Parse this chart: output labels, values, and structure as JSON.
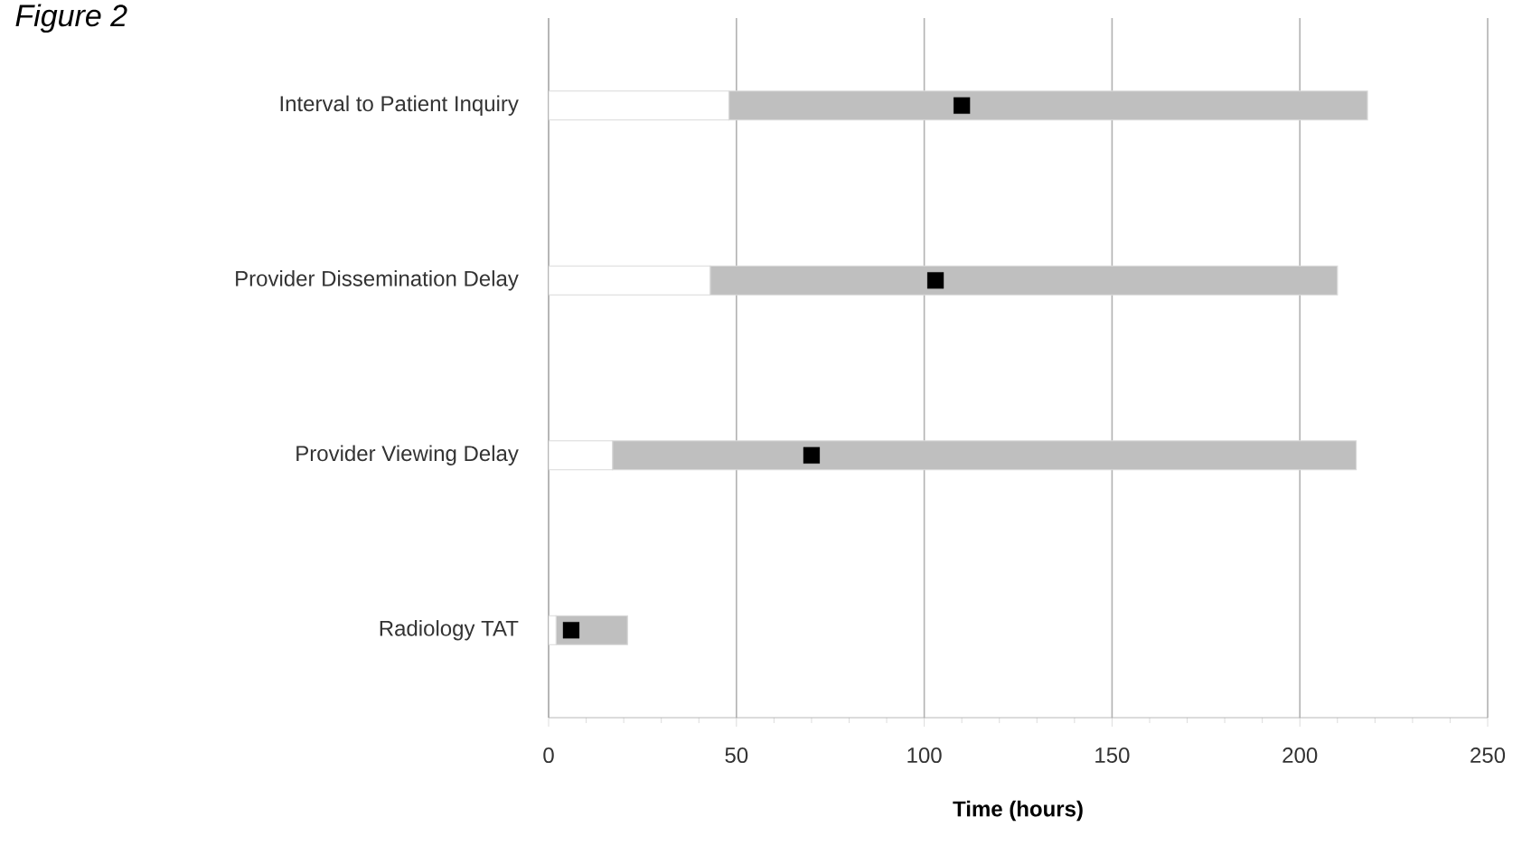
{
  "chart_data": {
    "type": "bar",
    "orientation": "horizontal",
    "stacked": true,
    "title": "Figure 2",
    "xlabel": "Time (hours)",
    "categories": [
      "Interval to Patient Inquiry",
      "Provider Dissemination Delay",
      "Provider Viewing Delay",
      "Radiology TAT"
    ],
    "series": [
      {
        "color": "#ffffff",
        "values": [
          48,
          43,
          17,
          2
        ]
      },
      {
        "color": "#bfbfbf",
        "values": [
          170,
          167,
          198,
          19
        ]
      },
      {
        "type": "scatter",
        "color": "#000000",
        "marker": "square",
        "x": [
          "Interval to Patient Inquiry",
          "Provider Dissemination Delay",
          "Provider Viewing Delay",
          "Radiology TAT"
        ],
        "values": [
          110,
          103,
          70,
          6
        ]
      }
    ],
    "xlim": [
      0,
      250
    ],
    "xticks": [
      0,
      {
        "value": 10,
        "label": null
      },
      {
        "value": 20,
        "label": null
      },
      {
        "value": 30,
        "label": null
      },
      {
        "value": 40,
        "label": null
      },
      50,
      {
        "value": 60,
        "label": null
      },
      {
        "value": 70,
        "label": null
      },
      {
        "value": 80,
        "label": null
      },
      {
        "value": 90,
        "label": null
      },
      100,
      {
        "value": 110,
        "label": null
      },
      {
        "value": 120,
        "label": null
      },
      {
        "value": 130,
        "label": null
      },
      {
        "value": 140,
        "label": null
      },
      150,
      {
        "value": 160,
        "label": null
      },
      {
        "value": 170,
        "label": null
      },
      {
        "value": 180,
        "label": null
      },
      {
        "value": 190,
        "label": null
      },
      200,
      {
        "value": 210,
        "label": null
      },
      {
        "value": 220,
        "label": null
      },
      {
        "value": 230,
        "label": null
      },
      {
        "value": 240,
        "label": null
      },
      250
    ],
    "grid": "x"
  }
}
